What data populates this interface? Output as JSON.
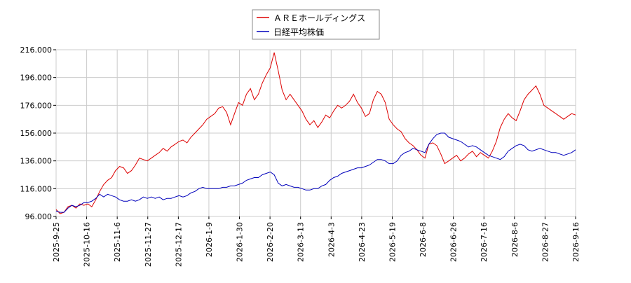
{
  "chart_data": {
    "type": "line",
    "x_tick_labels": [
      "2025-9-25",
      "2025-10-16",
      "2025-11-6",
      "2025-11-27",
      "2025-12-17",
      "2026-1-9",
      "2026-1-30",
      "2026-2-20",
      "2026-3-13",
      "2026-4-3",
      "2026-4-23",
      "2026-5-19",
      "2026-6-8",
      "2026-6-26",
      "2026-7-16",
      "2026-8-6",
      "2026-8-27",
      "2026-9-16"
    ],
    "y_tick_labels": [
      "96.000",
      "116.000",
      "136.000",
      "156.000",
      "176.000",
      "196.000",
      "216.000"
    ],
    "ylim": [
      96,
      216
    ],
    "grid": true,
    "legend_position": "top-center",
    "series": [
      {
        "name": "ＡＲＥホールディングス",
        "color": "#dd0000",
        "points": [
          [
            0,
            101
          ],
          [
            1,
            98
          ],
          [
            2,
            99
          ],
          [
            3,
            103
          ],
          [
            4,
            104
          ],
          [
            5,
            102
          ],
          [
            6,
            105
          ],
          [
            7,
            104
          ],
          [
            8,
            105
          ],
          [
            9,
            103
          ],
          [
            10,
            108
          ],
          [
            11,
            114
          ],
          [
            12,
            119
          ],
          [
            13,
            122
          ],
          [
            14,
            124
          ],
          [
            15,
            129
          ],
          [
            16,
            132
          ],
          [
            17,
            131
          ],
          [
            18,
            127
          ],
          [
            19,
            129
          ],
          [
            20,
            133
          ],
          [
            21,
            138
          ],
          [
            22,
            137
          ],
          [
            23,
            136
          ],
          [
            24,
            138
          ],
          [
            25,
            140
          ],
          [
            26,
            142
          ],
          [
            27,
            145
          ],
          [
            28,
            143
          ],
          [
            29,
            146
          ],
          [
            30,
            148
          ],
          [
            31,
            150
          ],
          [
            32,
            151
          ],
          [
            33,
            149
          ],
          [
            34,
            153
          ],
          [
            35,
            156
          ],
          [
            36,
            159
          ],
          [
            37,
            162
          ],
          [
            38,
            166
          ],
          [
            39,
            168
          ],
          [
            40,
            170
          ],
          [
            41,
            174
          ],
          [
            42,
            175
          ],
          [
            43,
            171
          ],
          [
            44,
            162
          ],
          [
            45,
            170
          ],
          [
            46,
            178
          ],
          [
            47,
            176
          ],
          [
            48,
            184
          ],
          [
            49,
            188
          ],
          [
            50,
            180
          ],
          [
            51,
            184
          ],
          [
            52,
            192
          ],
          [
            53,
            198
          ],
          [
            54,
            203
          ],
          [
            55,
            214
          ],
          [
            56,
            201
          ],
          [
            57,
            187
          ],
          [
            58,
            180
          ],
          [
            59,
            184
          ],
          [
            60,
            180
          ],
          [
            61,
            176
          ],
          [
            62,
            172
          ],
          [
            63,
            166
          ],
          [
            64,
            162
          ],
          [
            65,
            165
          ],
          [
            66,
            160
          ],
          [
            67,
            164
          ],
          [
            68,
            169
          ],
          [
            69,
            167
          ],
          [
            70,
            172
          ],
          [
            71,
            176
          ],
          [
            72,
            174
          ],
          [
            73,
            176
          ],
          [
            74,
            179
          ],
          [
            75,
            184
          ],
          [
            76,
            178
          ],
          [
            77,
            174
          ],
          [
            78,
            168
          ],
          [
            79,
            170
          ],
          [
            80,
            180
          ],
          [
            81,
            186
          ],
          [
            82,
            184
          ],
          [
            83,
            178
          ],
          [
            84,
            166
          ],
          [
            85,
            162
          ],
          [
            86,
            159
          ],
          [
            87,
            157
          ],
          [
            88,
            152
          ],
          [
            89,
            149
          ],
          [
            90,
            147
          ],
          [
            91,
            144
          ],
          [
            92,
            140
          ],
          [
            93,
            138
          ],
          [
            94,
            148
          ],
          [
            95,
            149
          ],
          [
            96,
            147
          ],
          [
            97,
            141
          ],
          [
            98,
            134
          ],
          [
            99,
            136
          ],
          [
            100,
            138
          ],
          [
            101,
            140
          ],
          [
            102,
            136
          ],
          [
            103,
            138
          ],
          [
            104,
            141
          ],
          [
            105,
            143
          ],
          [
            106,
            139
          ],
          [
            107,
            142
          ],
          [
            108,
            140
          ],
          [
            109,
            138
          ],
          [
            110,
            143
          ],
          [
            111,
            150
          ],
          [
            112,
            160
          ],
          [
            113,
            166
          ],
          [
            114,
            170
          ],
          [
            115,
            167
          ],
          [
            116,
            165
          ],
          [
            117,
            172
          ],
          [
            118,
            180
          ],
          [
            119,
            184
          ],
          [
            120,
            187
          ],
          [
            121,
            190
          ],
          [
            122,
            184
          ],
          [
            123,
            176
          ],
          [
            124,
            174
          ],
          [
            125,
            172
          ],
          [
            126,
            170
          ],
          [
            127,
            168
          ],
          [
            128,
            166
          ],
          [
            129,
            168
          ],
          [
            130,
            170
          ],
          [
            131,
            169
          ]
        ]
      },
      {
        "name": "日経平均株価",
        "color": "#0000bb",
        "points": [
          [
            0,
            100
          ],
          [
            1,
            99
          ],
          [
            2,
            99
          ],
          [
            3,
            102
          ],
          [
            4,
            104
          ],
          [
            5,
            103
          ],
          [
            6,
            104
          ],
          [
            7,
            106
          ],
          [
            8,
            106
          ],
          [
            9,
            107
          ],
          [
            10,
            109
          ],
          [
            11,
            112
          ],
          [
            12,
            110
          ],
          [
            13,
            112
          ],
          [
            14,
            111
          ],
          [
            15,
            110
          ],
          [
            16,
            108
          ],
          [
            17,
            107
          ],
          [
            18,
            107
          ],
          [
            19,
            108
          ],
          [
            20,
            107
          ],
          [
            21,
            108
          ],
          [
            22,
            110
          ],
          [
            23,
            109
          ],
          [
            24,
            110
          ],
          [
            25,
            109
          ],
          [
            26,
            110
          ],
          [
            27,
            108
          ],
          [
            28,
            109
          ],
          [
            29,
            109
          ],
          [
            30,
            110
          ],
          [
            31,
            111
          ],
          [
            32,
            110
          ],
          [
            33,
            111
          ],
          [
            34,
            113
          ],
          [
            35,
            114
          ],
          [
            36,
            116
          ],
          [
            37,
            117
          ],
          [
            38,
            116
          ],
          [
            39,
            116
          ],
          [
            40,
            116
          ],
          [
            41,
            116
          ],
          [
            42,
            117
          ],
          [
            43,
            117
          ],
          [
            44,
            118
          ],
          [
            45,
            118
          ],
          [
            46,
            119
          ],
          [
            47,
            120
          ],
          [
            48,
            122
          ],
          [
            49,
            123
          ],
          [
            50,
            124
          ],
          [
            51,
            124
          ],
          [
            52,
            126
          ],
          [
            53,
            127
          ],
          [
            54,
            128
          ],
          [
            55,
            126
          ],
          [
            56,
            120
          ],
          [
            57,
            118
          ],
          [
            58,
            119
          ],
          [
            59,
            118
          ],
          [
            60,
            117
          ],
          [
            61,
            117
          ],
          [
            62,
            116
          ],
          [
            63,
            115
          ],
          [
            64,
            115
          ],
          [
            65,
            116
          ],
          [
            66,
            116
          ],
          [
            67,
            118
          ],
          [
            68,
            119
          ],
          [
            69,
            122
          ],
          [
            70,
            124
          ],
          [
            71,
            125
          ],
          [
            72,
            127
          ],
          [
            73,
            128
          ],
          [
            74,
            129
          ],
          [
            75,
            130
          ],
          [
            76,
            131
          ],
          [
            77,
            131
          ],
          [
            78,
            132
          ],
          [
            79,
            133
          ],
          [
            80,
            135
          ],
          [
            81,
            137
          ],
          [
            82,
            137
          ],
          [
            83,
            136
          ],
          [
            84,
            134
          ],
          [
            85,
            134
          ],
          [
            86,
            136
          ],
          [
            87,
            140
          ],
          [
            88,
            142
          ],
          [
            89,
            143
          ],
          [
            90,
            145
          ],
          [
            91,
            144
          ],
          [
            92,
            143
          ],
          [
            93,
            142
          ],
          [
            94,
            148
          ],
          [
            95,
            152
          ],
          [
            96,
            155
          ],
          [
            97,
            156
          ],
          [
            98,
            156
          ],
          [
            99,
            153
          ],
          [
            100,
            152
          ],
          [
            101,
            151
          ],
          [
            102,
            150
          ],
          [
            103,
            148
          ],
          [
            104,
            146
          ],
          [
            105,
            147
          ],
          [
            106,
            146
          ],
          [
            107,
            144
          ],
          [
            108,
            142
          ],
          [
            109,
            140
          ],
          [
            110,
            139
          ],
          [
            111,
            138
          ],
          [
            112,
            137
          ],
          [
            113,
            139
          ],
          [
            114,
            143
          ],
          [
            115,
            145
          ],
          [
            116,
            147
          ],
          [
            117,
            148
          ],
          [
            118,
            147
          ],
          [
            119,
            144
          ],
          [
            120,
            143
          ],
          [
            121,
            144
          ],
          [
            122,
            145
          ],
          [
            123,
            144
          ],
          [
            124,
            143
          ],
          [
            125,
            142
          ],
          [
            126,
            142
          ],
          [
            127,
            141
          ],
          [
            128,
            140
          ],
          [
            129,
            141
          ],
          [
            130,
            142
          ],
          [
            131,
            144
          ]
        ]
      }
    ]
  }
}
